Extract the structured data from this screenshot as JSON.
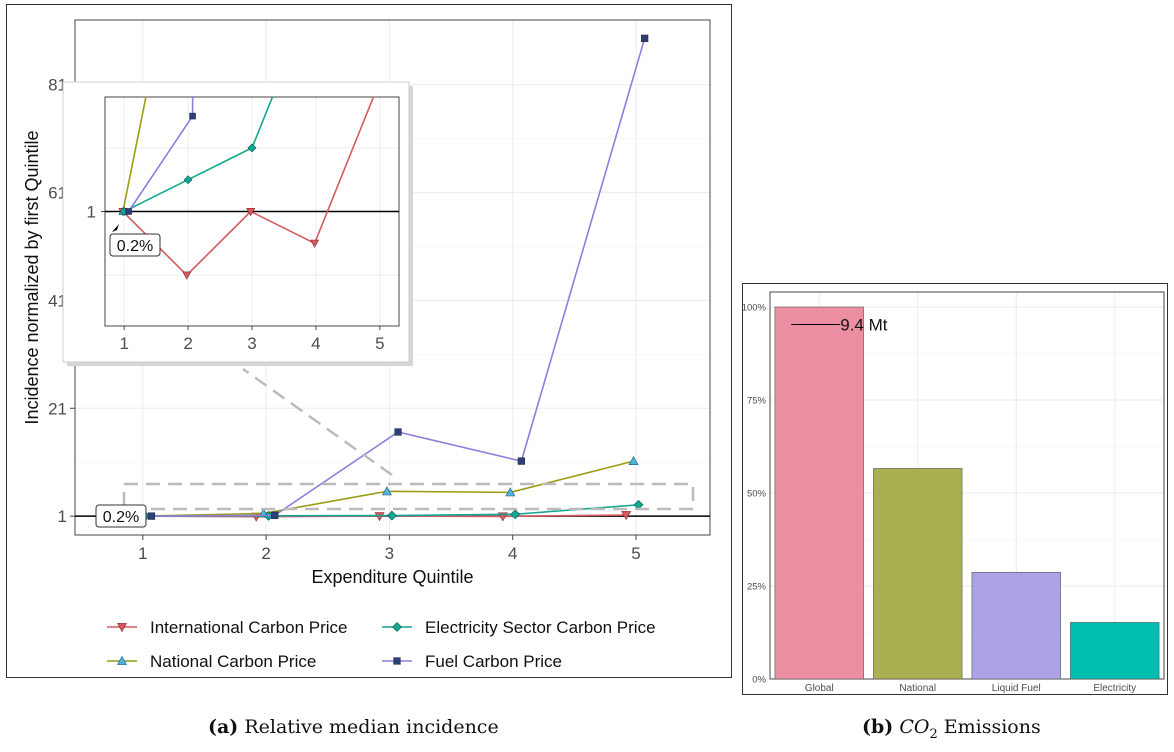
{
  "captions": {
    "left": {
      "tag": "(a)",
      "text": "Relative median incidence"
    },
    "right": {
      "tag": "(b)",
      "text_var": "CO",
      "text_sub": "2",
      "text_rest": " Emissions"
    }
  },
  "chart_data": [
    {
      "type": "line",
      "title": "",
      "xlabel": "Expenditure Quintile",
      "ylabel": "Incidence normalized by first Quintile",
      "x": [
        1,
        2,
        3,
        4,
        5
      ],
      "xticks": [
        "1",
        "2",
        "3",
        "4",
        "5"
      ],
      "yticks": [
        "1",
        "21",
        "41",
        "61",
        "81"
      ],
      "ytick_values": [
        1,
        21,
        41,
        61,
        81
      ],
      "ylim": [
        -2.5,
        93
      ],
      "grid": true,
      "legend_position": "bottom",
      "reference_line": 1,
      "annotation": "0.2%",
      "colors": {
        "international": "#d45a62",
        "national": "#9c9c14",
        "electricity": "#12a693",
        "fuel": "#8c7fdd",
        "triangle_fill": "#52b3dd",
        "square_fill": "#2e3f75"
      },
      "series": [
        {
          "key": "international",
          "name": "International Carbon Price",
          "marker": "triangle-down",
          "values": [
            1,
            0.9,
            1.0,
            0.95,
            1.2
          ]
        },
        {
          "key": "national",
          "name": "National Carbon Price",
          "marker": "triangle-up",
          "values": [
            1,
            1.5,
            5.6,
            5.4,
            11.2
          ]
        },
        {
          "key": "electricity",
          "name": "Electricity Sector Carbon Price",
          "marker": "diamond",
          "values": [
            1,
            1.05,
            1.1,
            1.35,
            3.1
          ]
        },
        {
          "key": "fuel",
          "name": "Fuel Carbon Price",
          "marker": "square",
          "values": [
            1,
            1.15,
            16.6,
            11.2,
            89.6
          ]
        }
      ],
      "inset": {
        "xticks": [
          "1",
          "2",
          "3",
          "4",
          "5"
        ],
        "ytick_label": "1",
        "ylim": [
          0.82,
          1.18
        ],
        "annotation": "0.2%"
      }
    },
    {
      "type": "bar",
      "title": "",
      "categories": [
        "Global",
        "National",
        "Liquid Fuel",
        "Electricity"
      ],
      "values": [
        100,
        56.6,
        28.7,
        15.2
      ],
      "ylim": [
        0,
        100
      ],
      "yticks": [
        "0%",
        "25%",
        "50%",
        "75%",
        "100%"
      ],
      "ytick_values": [
        0,
        25,
        50,
        75,
        100
      ],
      "grid": true,
      "annotation": "9.4 Mt",
      "colors": [
        "#ec8fa2",
        "#a9b050",
        "#aba3e6",
        "#00bfb0"
      ]
    }
  ]
}
